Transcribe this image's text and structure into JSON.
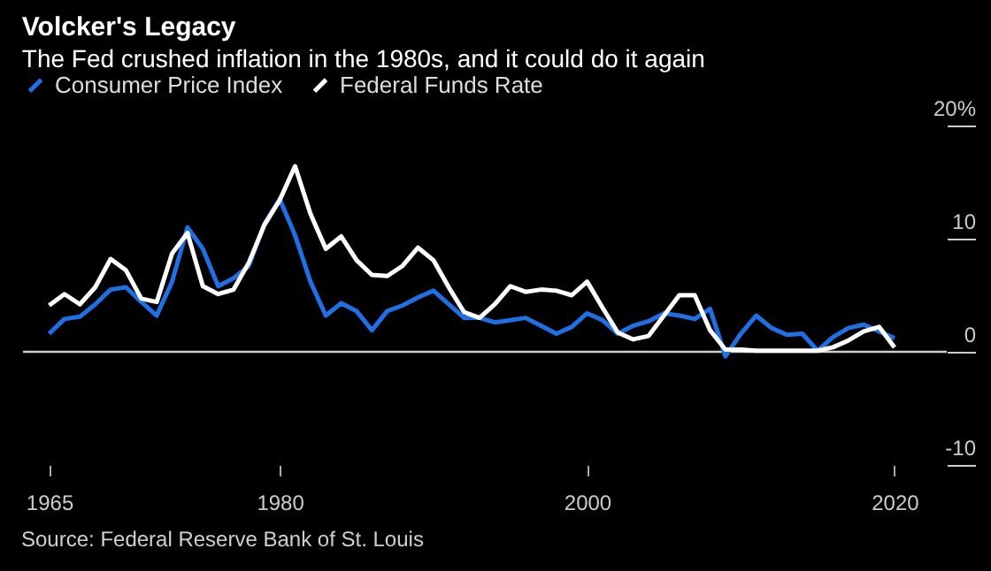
{
  "chart_data": {
    "type": "line",
    "title": "Volcker's Legacy",
    "subtitle": "The Fed crushed inflation in the 1980s, and it could do it again",
    "x": [
      1965,
      1966,
      1967,
      1968,
      1969,
      1970,
      1971,
      1972,
      1973,
      1974,
      1975,
      1976,
      1977,
      1978,
      1979,
      1980,
      1981,
      1982,
      1983,
      1984,
      1985,
      1986,
      1987,
      1988,
      1989,
      1990,
      1991,
      1992,
      1993,
      1994,
      1995,
      1996,
      1997,
      1998,
      1999,
      2000,
      2001,
      2002,
      2003,
      2004,
      2005,
      2006,
      2007,
      2008,
      2009,
      2010,
      2011,
      2012,
      2013,
      2014,
      2015,
      2016,
      2017,
      2018,
      2019,
      2020
    ],
    "series": [
      {
        "name": "Consumer Price Index",
        "color": "#1f6fe5",
        "values": [
          1.6,
          2.9,
          3.1,
          4.2,
          5.5,
          5.7,
          4.4,
          3.2,
          6.2,
          11.0,
          9.1,
          5.8,
          6.5,
          7.6,
          11.3,
          13.5,
          10.3,
          6.2,
          3.2,
          4.3,
          3.6,
          1.9,
          3.6,
          4.1,
          4.8,
          5.4,
          4.2,
          3.0,
          3.0,
          2.6,
          2.8,
          3.0,
          2.3,
          1.6,
          2.2,
          3.4,
          2.8,
          1.6,
          2.3,
          2.7,
          3.4,
          3.2,
          2.9,
          3.8,
          -0.4,
          1.6,
          3.2,
          2.1,
          1.5,
          1.6,
          0.1,
          1.3,
          2.1,
          2.4,
          1.8,
          1.2
        ]
      },
      {
        "name": "Federal Funds Rate",
        "color": "#ffffff",
        "values": [
          4.1,
          5.1,
          4.2,
          5.7,
          8.2,
          7.2,
          4.7,
          4.4,
          8.7,
          10.5,
          5.8,
          5.1,
          5.5,
          7.9,
          11.2,
          13.4,
          16.4,
          12.2,
          9.1,
          10.2,
          8.1,
          6.8,
          6.7,
          7.6,
          9.2,
          8.1,
          5.7,
          3.5,
          3.0,
          4.2,
          5.8,
          5.3,
          5.5,
          5.4,
          5.0,
          6.2,
          3.9,
          1.7,
          1.1,
          1.4,
          3.2,
          5.0,
          5.0,
          1.9,
          0.2,
          0.2,
          0.1,
          0.1,
          0.1,
          0.1,
          0.1,
          0.4,
          1.0,
          1.8,
          2.2,
          0.4
        ]
      }
    ],
    "xlim": [
      1963.3,
      2023.4
    ],
    "xticks": [
      1965,
      1980,
      2000,
      2020
    ],
    "ylim": [
      -10,
      20
    ],
    "yticks": [
      {
        "value": -10,
        "label": "-10"
      },
      {
        "value": 0,
        "label": "0"
      },
      {
        "value": 10,
        "label": "10"
      },
      {
        "value": 20,
        "label": "20%"
      }
    ],
    "ref_lines": [
      {
        "axis": "y",
        "value": 0,
        "color": "#cccccc"
      }
    ],
    "grid": false,
    "legend": "top left",
    "annotations": [
      "Source: Federal Reserve Bank of St. Louis"
    ]
  }
}
